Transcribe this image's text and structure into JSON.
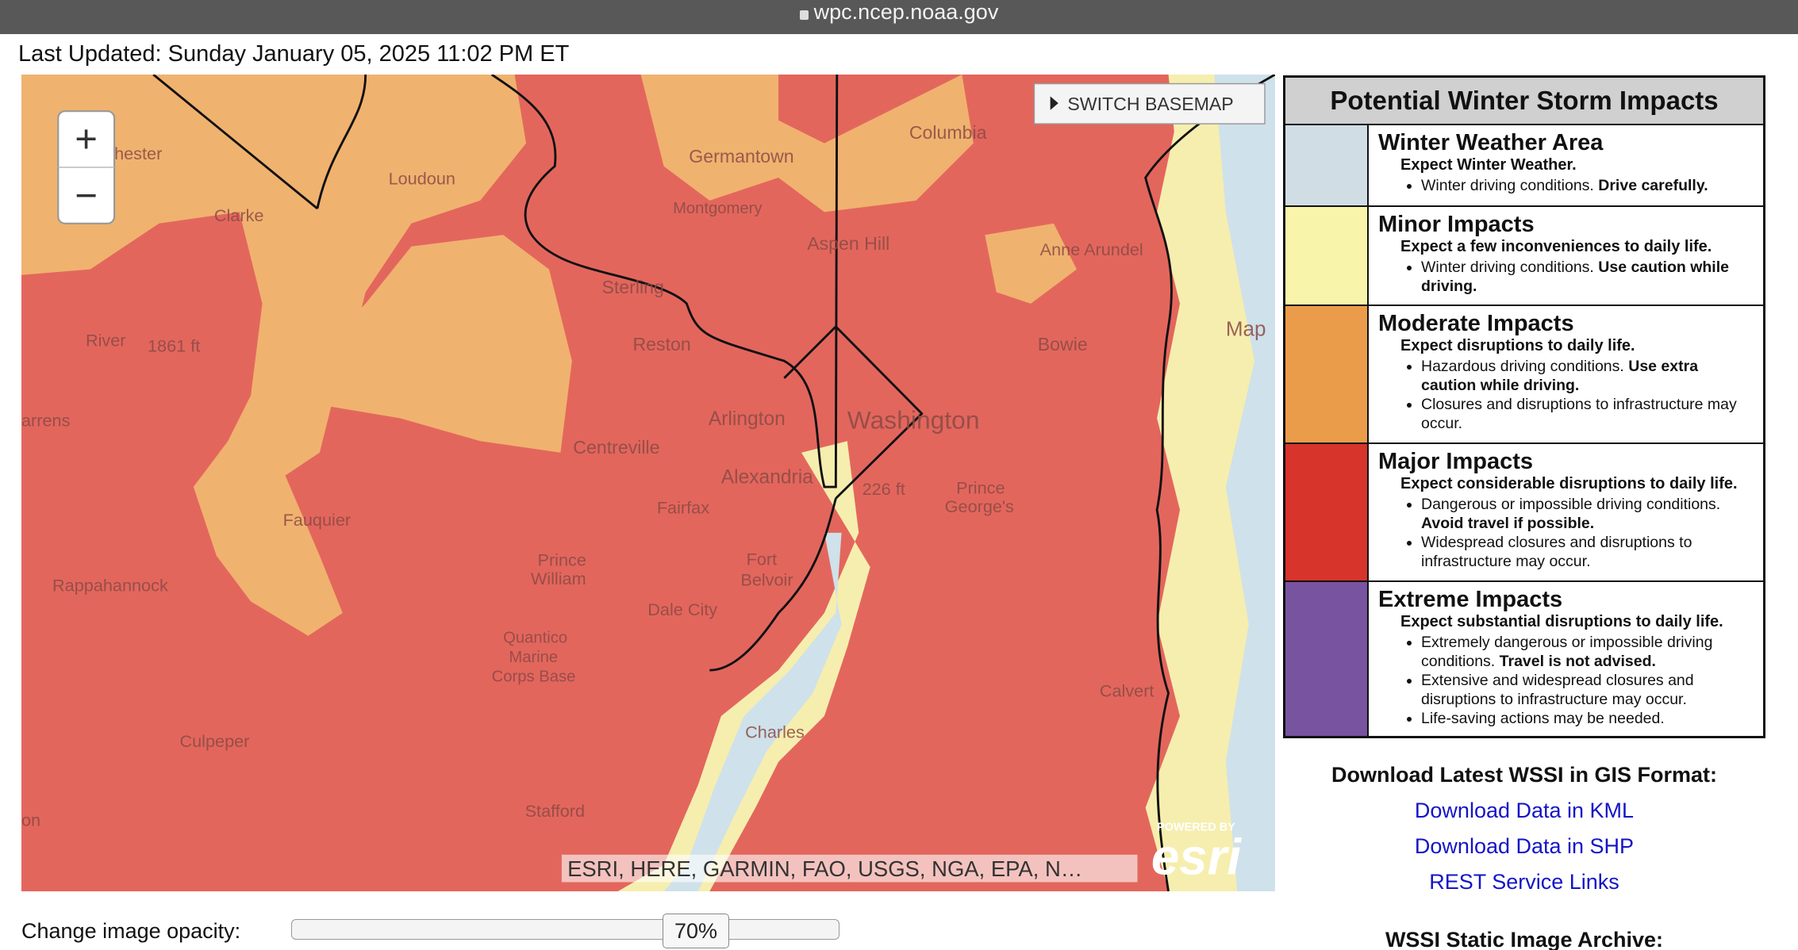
{
  "browser": {
    "url": "wpc.ncep.noaa.gov"
  },
  "header": {
    "updated": "Last Updated: Sunday January 05, 2025 11:02 PM ET"
  },
  "map": {
    "basemap_button": "SWITCH BASEMAP",
    "zoom_in": "+",
    "zoom_out": "−",
    "attribution": "ESRI, HERE, GARMIN, FAO, USGS, NGA, EPA, N…",
    "powered_by": "POWERED BY",
    "logo": "esri",
    "labels": [
      "hester",
      "Loudoun",
      "Clarke",
      "Germantown",
      "Montgomery",
      "Columbia",
      "Aspen Hill",
      "Anne Arundel",
      "Sterling",
      "Reston",
      "Bowie",
      "River",
      "1861 ft",
      "Arlington",
      "Washington",
      "Centreville",
      "arrens",
      "Alexandria",
      "226 ft",
      "Prince",
      "George's",
      "Fairfax",
      "Fauquier",
      "Prince",
      "William",
      "Fort",
      "Belvoir",
      "Rappahannock",
      "Dale City",
      "Quantico",
      "Marine",
      "Corps Base",
      "Calvert",
      "Charles",
      "Culpeper",
      "Stafford",
      "on",
      "Map"
    ]
  },
  "legend": {
    "title": "Potential Winter Storm Impacts",
    "items": [
      {
        "heading": "Winter Weather Area",
        "color": "#d1dde5",
        "summary": "Expect Winter Weather.",
        "bullets": [
          {
            "text": "Winter driving conditions.",
            "bold": "Drive carefully."
          }
        ]
      },
      {
        "heading": "Minor Impacts",
        "color": "#f8f5ab",
        "summary": "Expect a few inconveniences to daily life.",
        "bullets": [
          {
            "text": "Winter driving conditions.",
            "bold": "Use caution while driving."
          }
        ]
      },
      {
        "heading": "Moderate Impacts",
        "color": "#eb9c4a",
        "summary": "Expect disruptions to daily life.",
        "bullets": [
          {
            "text": "Hazardous driving conditions.",
            "bold": "Use extra caution while driving."
          },
          {
            "text": "Closures and disruptions to infrastructure may occur."
          }
        ]
      },
      {
        "heading": "Major Impacts",
        "color": "#d7342c",
        "summary": "Expect considerable disruptions to daily life.",
        "bullets": [
          {
            "text": "Dangerous or impossible driving conditions.",
            "bold": "Avoid travel if possible."
          },
          {
            "text": "Widespread closures and disruptions to infrastructure may occur."
          }
        ]
      },
      {
        "heading": "Extreme Impacts",
        "color": "#7854a0",
        "summary": "Expect substantial disruptions to daily life.",
        "bullets": [
          {
            "text": "Extremely dangerous or impossible driving conditions.",
            "bold": "Travel is not advised."
          },
          {
            "text": "Extensive and widespread closures and disruptions to infrastructure may occur."
          },
          {
            "text": "Life-saving actions may be needed."
          }
        ]
      }
    ]
  },
  "downloads": {
    "title": "Download Latest WSSI in GIS Format:",
    "links": [
      "Download Data in KML",
      "Download Data in SHP",
      "REST Service Links"
    ],
    "archive_title": "WSSI Static Image Archive:"
  },
  "opacity": {
    "label": "Change image opacity:",
    "value": "70%"
  }
}
